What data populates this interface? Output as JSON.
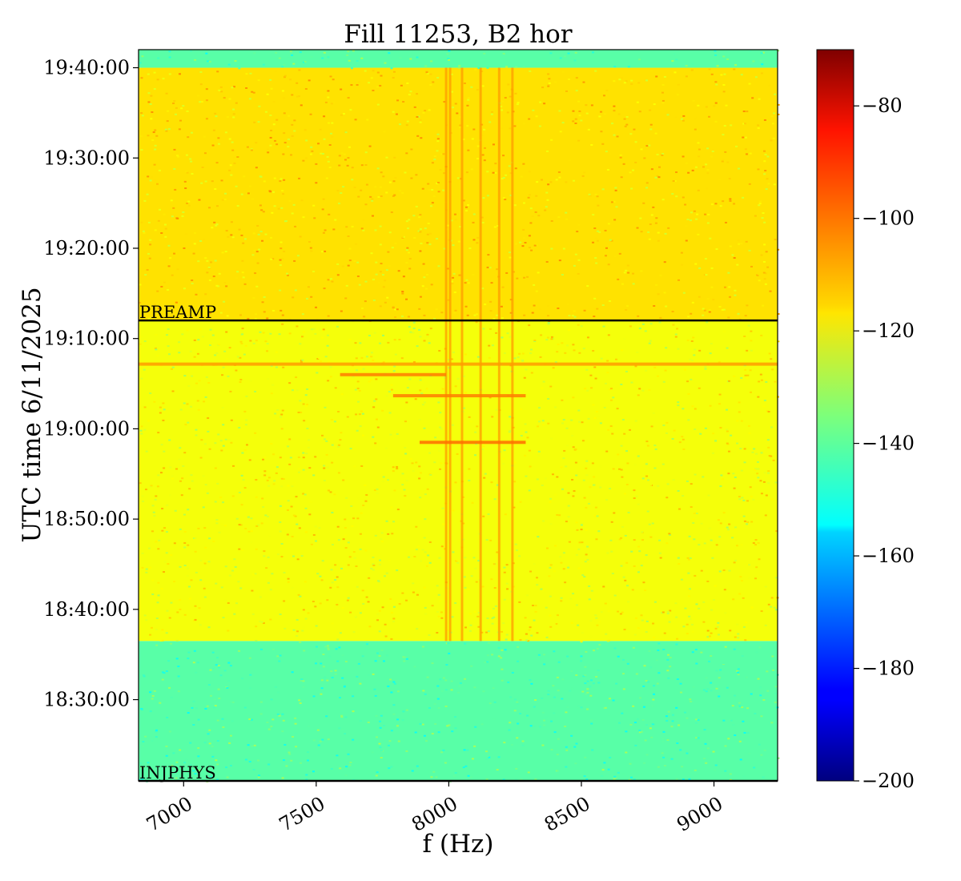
{
  "chart_data": {
    "type": "heatmap",
    "title": "Fill 11253, B2 hor",
    "xlabel": "f (Hz)",
    "ylabel": "UTC time 6/11/2025",
    "xlim": [
      6830,
      9240
    ],
    "ylim_minutes": [
      1101,
      1182
    ],
    "x_ticks": [
      7000,
      7500,
      8000,
      8500,
      9000
    ],
    "x_tick_labels": [
      "7000",
      "7500",
      "8000",
      "8500",
      "9000"
    ],
    "y_ticks_minutes": [
      1110,
      1120,
      1130,
      1140,
      1150,
      1160,
      1170,
      1180
    ],
    "y_tick_labels": [
      "18:30:00",
      "18:40:00",
      "18:50:00",
      "19:00:00",
      "19:10:00",
      "19:20:00",
      "19:30:00",
      "19:40:00"
    ],
    "colorbar": {
      "colormap": "jet",
      "range": [
        -200,
        -70
      ],
      "ticks": [
        -80,
        -100,
        -120,
        -140,
        -160,
        -180,
        -200
      ],
      "tick_labels": [
        "−80",
        "−100",
        "−120",
        "−140",
        "−160",
        "−180",
        "−200"
      ]
    },
    "markers": [
      {
        "label": "PREAMP",
        "time": "19:12:00"
      },
      {
        "label": "INJPHYS",
        "time": "18:21:00"
      }
    ],
    "regions": [
      {
        "from": "18:21:00",
        "to": "18:36:30",
        "level_db": -140
      },
      {
        "from": "18:36:30",
        "to": "19:12:00",
        "level_db": -120
      },
      {
        "from": "19:12:00",
        "to": "19:40:00",
        "level_db": -115
      },
      {
        "from": "19:40:00",
        "to": "19:42:00",
        "level_db": -140
      }
    ],
    "vertical_lines_hz": [
      7990,
      8005,
      8050,
      8120,
      8190,
      8240
    ],
    "vertical_lines_level_db": -106,
    "horizontal_bursts": [
      {
        "time": "18:58:30",
        "f_from": 7890,
        "f_to": 8290,
        "level_db": -100
      },
      {
        "time": "19:03:40",
        "f_from": 7790,
        "f_to": 8290,
        "level_db": -102
      },
      {
        "time": "19:06:00",
        "f_from": 7590,
        "f_to": 7990,
        "level_db": -102
      },
      {
        "time": "19:07:10",
        "f_from": 6830,
        "f_to": 9240,
        "level_db": -106
      }
    ]
  }
}
